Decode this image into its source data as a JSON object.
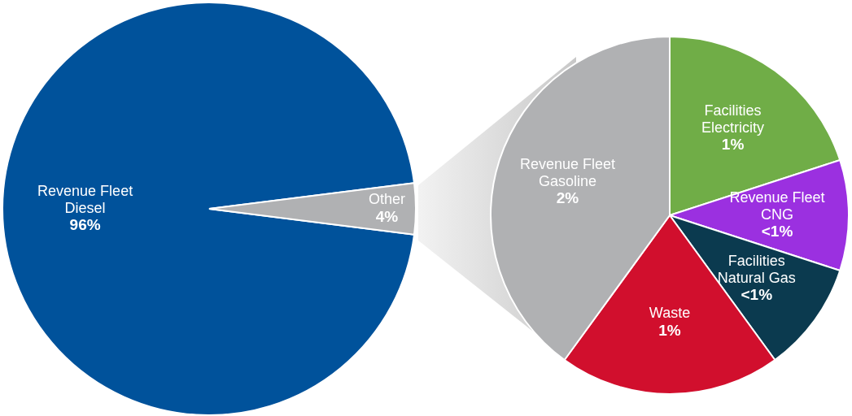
{
  "chart_data": [
    {
      "type": "pie",
      "categories": [
        "Revenue Fleet Diesel",
        "Other"
      ],
      "values": [
        96,
        4
      ],
      "colors": [
        "#00529b",
        "#b0b1b3"
      ],
      "value_labels": [
        "96%",
        "4%"
      ]
    },
    {
      "type": "pie",
      "categories": [
        "Facilities Electricity",
        "Revenue Fleet CNG",
        "Facilities Natural Gas",
        "Waste",
        "Revenue Fleet Gasoline"
      ],
      "values": [
        1,
        0.5,
        0.5,
        1,
        2
      ],
      "colors": [
        "#70ad47",
        "#9b30e0",
        "#0b3a4f",
        "#d10f2d",
        "#b0b1b3"
      ],
      "value_labels": [
        "1%",
        "<1%",
        "<1%",
        "1%",
        "2%"
      ]
    }
  ]
}
